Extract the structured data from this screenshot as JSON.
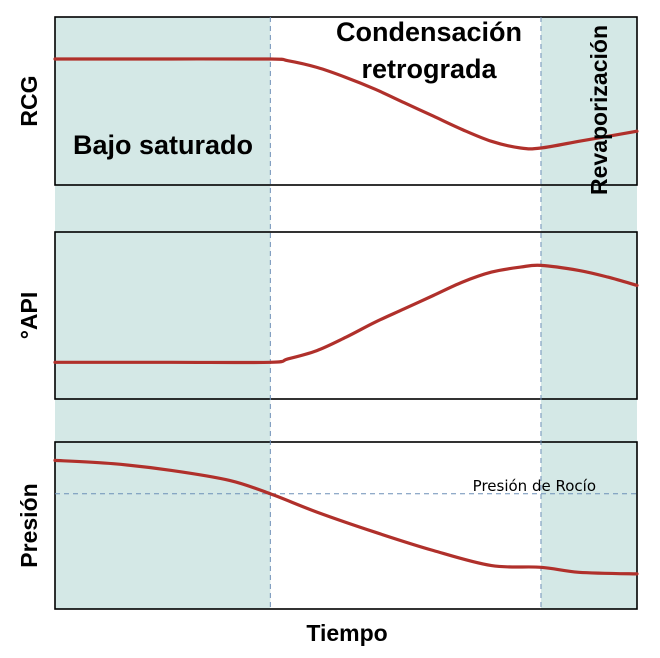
{
  "chart_data": {
    "type": "line",
    "title": "",
    "xlabel": "Tiempo",
    "regions": [
      {
        "name": "Bajo saturado",
        "shaded": true
      },
      {
        "name": "Condensación retrograda",
        "lines": [
          "Condensación",
          "retrograda"
        ],
        "shaded": false
      },
      {
        "name": "Revaporización",
        "shaded": true
      }
    ],
    "region_boundaries_x": [
      0,
      0.37,
      0.835,
      1.0
    ],
    "panels": [
      {
        "ylabel": "RCG",
        "ylim": [
          0,
          1
        ],
        "x": [
          0.0,
          0.2,
          0.37,
          0.4,
          0.45,
          0.5,
          0.55,
          0.6,
          0.65,
          0.7,
          0.75,
          0.8,
          0.835,
          0.9,
          0.95,
          1.0
        ],
        "y": [
          0.75,
          0.75,
          0.75,
          0.74,
          0.7,
          0.64,
          0.57,
          0.49,
          0.41,
          0.33,
          0.26,
          0.22,
          0.22,
          0.26,
          0.29,
          0.32
        ]
      },
      {
        "ylabel": "°API",
        "ylim": [
          0,
          1
        ],
        "x": [
          0.0,
          0.2,
          0.37,
          0.4,
          0.45,
          0.5,
          0.55,
          0.6,
          0.65,
          0.7,
          0.75,
          0.8,
          0.835,
          0.9,
          0.95,
          1.0
        ],
        "y": [
          0.22,
          0.22,
          0.22,
          0.24,
          0.29,
          0.37,
          0.46,
          0.54,
          0.62,
          0.7,
          0.76,
          0.79,
          0.8,
          0.77,
          0.73,
          0.68
        ]
      },
      {
        "ylabel": "Presión",
        "ylim": [
          0,
          1
        ],
        "reference_line": {
          "y": 0.69,
          "label": "Presión de Rocío"
        },
        "x": [
          0.0,
          0.1,
          0.2,
          0.3,
          0.37,
          0.45,
          0.55,
          0.65,
          0.75,
          0.835,
          0.9,
          1.0
        ],
        "y": [
          0.89,
          0.87,
          0.83,
          0.77,
          0.69,
          0.58,
          0.46,
          0.35,
          0.26,
          0.25,
          0.22,
          0.21
        ]
      }
    ],
    "colors": {
      "curve": "#b0302b",
      "shade": "#d4e8e6",
      "frame": "#000000",
      "divider": "#6d8fb7"
    }
  }
}
